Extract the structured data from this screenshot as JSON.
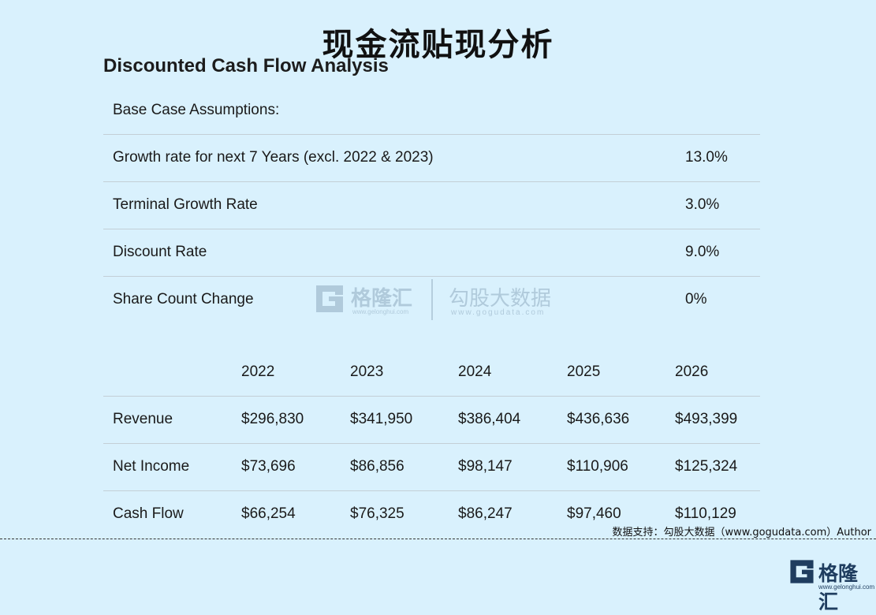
{
  "title": "现金流贴现分析",
  "subtitle": "Discounted Cash Flow Analysis",
  "assumptions": {
    "header": "Base Case Assumptions:",
    "rows": [
      {
        "label": "Growth rate for next 7 Years (excl. 2022 & 2023)",
        "value": "13.0%"
      },
      {
        "label": "Terminal Growth Rate",
        "value": "3.0%"
      },
      {
        "label": "Discount Rate",
        "value": "9.0%"
      },
      {
        "label": "Share Count Change",
        "value": "0%"
      }
    ]
  },
  "financials": {
    "years": [
      "2022",
      "2023",
      "2024",
      "2025",
      "2026"
    ],
    "rows": [
      {
        "label": "Revenue",
        "values": [
          "$296,830",
          "$341,950",
          "$386,404",
          "$436,636",
          "$493,399"
        ]
      },
      {
        "label": "Net Income",
        "values": [
          "$73,696",
          "$86,856",
          "$98,147",
          "$110,906",
          "$125,324"
        ]
      },
      {
        "label": "Cash Flow",
        "values": [
          "$66,254",
          "$76,325",
          "$86,247",
          "$97,460",
          "$110,129"
        ]
      }
    ]
  },
  "watermark": {
    "brand": "格隆汇",
    "brand_url": "www.gelonghui.com",
    "partner": "勾股大数据",
    "partner_url": "www.gogudata.com"
  },
  "source_note": "数据支持：勾股大数据（www.gogudata.com）Author",
  "corner_logo": {
    "brand": "格隆汇",
    "url": "www.gelonghui.com"
  },
  "colors": {
    "background": "#d9f1fd",
    "rule": "#c3cfd6",
    "logo_blue": "#1f3d5f"
  }
}
